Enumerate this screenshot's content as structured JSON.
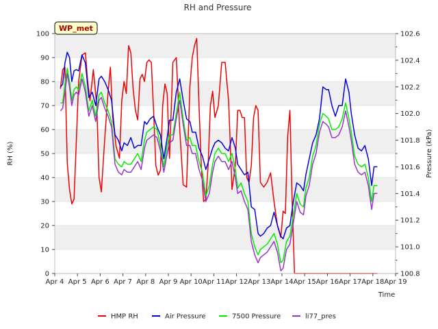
{
  "chart_data": {
    "type": "line",
    "title": "RH and Pressure",
    "xlabel": "Time",
    "ylabel": "RH (%)",
    "y2label": "Pressure (kPa)",
    "badge": "WP_met",
    "xlim": [
      0,
      15
    ],
    "ylim": [
      0,
      100
    ],
    "y2lim": [
      100.8,
      102.6
    ],
    "x_ticks": [
      {
        "v": 0,
        "label": "Apr 4"
      },
      {
        "v": 1,
        "label": "Apr 5"
      },
      {
        "v": 2,
        "label": "Apr 6"
      },
      {
        "v": 3,
        "label": "Apr 7"
      },
      {
        "v": 4,
        "label": "Apr 8"
      },
      {
        "v": 5,
        "label": "Apr 9"
      },
      {
        "v": 6,
        "label": "Apr 10"
      },
      {
        "v": 7,
        "label": "Apr 11"
      },
      {
        "v": 8,
        "label": "Apr 12"
      },
      {
        "v": 9,
        "label": "Apr 13"
      },
      {
        "v": 10,
        "label": "Apr 14"
      },
      {
        "v": 11,
        "label": "Apr 15"
      },
      {
        "v": 12,
        "label": "Apr 16"
      },
      {
        "v": 13,
        "label": "Apr 17"
      },
      {
        "v": 14,
        "label": "Apr 18"
      },
      {
        "v": 15,
        "label": "Apr 19"
      }
    ],
    "y_ticks": [
      {
        "v": 0,
        "label": "0"
      },
      {
        "v": 10,
        "label": "10"
      },
      {
        "v": 20,
        "label": "20"
      },
      {
        "v": 30,
        "label": "30"
      },
      {
        "v": 40,
        "label": "40"
      },
      {
        "v": 50,
        "label": "50"
      },
      {
        "v": 60,
        "label": "60"
      },
      {
        "v": 70,
        "label": "70"
      },
      {
        "v": 80,
        "label": "80"
      },
      {
        "v": 90,
        "label": "90"
      },
      {
        "v": 100,
        "label": "100"
      }
    ],
    "y2_ticks": [
      {
        "v": 100.8,
        "label": "100.8"
      },
      {
        "v": 101.0,
        "label": "101.0"
      },
      {
        "v": 101.2,
        "label": "101.2"
      },
      {
        "v": 101.4,
        "label": "101.4"
      },
      {
        "v": 101.6,
        "label": "101.6"
      },
      {
        "v": 101.8,
        "label": "101.8"
      },
      {
        "v": 102.0,
        "label": "102.0"
      },
      {
        "v": 102.2,
        "label": "102.2"
      },
      {
        "v": 102.4,
        "label": "102.4"
      },
      {
        "v": 102.6,
        "label": "102.6"
      }
    ],
    "grid": "horizontal bands",
    "legend_position": "bottom-center",
    "series": [
      {
        "name": "HMP RH",
        "axis": "left",
        "color": "#ee0000",
        "x": [
          0.25,
          0.35,
          0.45,
          0.55,
          0.65,
          0.75,
          0.85,
          0.95,
          1.05,
          1.2,
          1.35,
          1.45,
          1.55,
          1.7,
          1.85,
          1.95,
          2.05,
          2.2,
          2.35,
          2.45,
          2.55,
          2.7,
          2.85,
          2.95,
          3.05,
          3.15,
          3.25,
          3.35,
          3.45,
          3.55,
          3.65,
          3.75,
          3.85,
          3.95,
          4.05,
          4.15,
          4.25,
          4.35,
          4.45,
          4.55,
          4.65,
          4.75,
          4.85,
          4.95,
          5.05,
          5.2,
          5.35,
          5.5,
          5.65,
          5.8,
          5.95,
          6.05,
          6.15,
          6.25,
          6.35,
          6.45,
          6.55,
          6.65,
          6.75,
          6.85,
          6.95,
          7.05,
          7.2,
          7.35,
          7.5,
          7.65,
          7.8,
          7.95,
          8.05,
          8.15,
          8.25,
          8.35,
          8.45,
          8.55,
          8.65,
          8.75,
          8.85,
          8.95,
          9.05,
          9.2,
          9.35,
          9.5,
          9.65,
          9.8,
          9.95,
          10.05,
          10.15,
          10.25,
          10.35,
          10.45,
          10.55,
          10.7,
          11.0,
          11.5,
          12.0,
          12.5,
          13.0,
          13.5,
          14.0,
          14.2
        ],
        "values": [
          77,
          85,
          86,
          46,
          35,
          29,
          31,
          55,
          80,
          91,
          92,
          80,
          72,
          85,
          70,
          40,
          34,
          56,
          76,
          86,
          65,
          53,
          48,
          72,
          80,
          75,
          95,
          92,
          77,
          68,
          64,
          81,
          83,
          80,
          88,
          89,
          88,
          68,
          45,
          41,
          43,
          70,
          79,
          75,
          48,
          88,
          90,
          60,
          37,
          36,
          78,
          90,
          95,
          98,
          70,
          45,
          30,
          31,
          45,
          70,
          76,
          65,
          70,
          88,
          88,
          72,
          35,
          45,
          68,
          68,
          65,
          65,
          40,
          38,
          45,
          65,
          70,
          68,
          38,
          36,
          38,
          42,
          30,
          20,
          15,
          26,
          25,
          57,
          68,
          30,
          0,
          0,
          0,
          0,
          0,
          0,
          0,
          0,
          0,
          0
        ]
      },
      {
        "name": "Air Pressure",
        "axis": "right",
        "color": "#0000dd",
        "x": [
          0.25,
          0.35,
          0.45,
          0.55,
          0.65,
          0.75,
          0.85,
          0.95,
          1.05,
          1.2,
          1.35,
          1.5,
          1.65,
          1.8,
          1.95,
          2.05,
          2.2,
          2.35,
          2.5,
          2.65,
          2.8,
          2.95,
          3.05,
          3.2,
          3.35,
          3.5,
          3.65,
          3.8,
          3.95,
          4.05,
          4.2,
          4.35,
          4.5,
          4.65,
          4.8,
          4.95,
          5.05,
          5.2,
          5.35,
          5.5,
          5.65,
          5.8,
          5.95,
          6.05,
          6.2,
          6.35,
          6.5,
          6.65,
          6.8,
          6.95,
          7.05,
          7.2,
          7.35,
          7.5,
          7.65,
          7.8,
          7.95,
          8.05,
          8.2,
          8.35,
          8.5,
          8.65,
          8.8,
          8.95,
          9.05,
          9.2,
          9.35,
          9.5,
          9.65,
          9.8,
          9.95,
          10.05,
          10.2,
          10.35,
          10.5,
          10.65,
          10.8,
          10.95,
          11.05,
          11.2,
          11.35,
          11.5,
          11.65,
          11.8,
          11.95,
          12.05,
          12.2,
          12.35,
          12.5,
          12.65,
          12.8,
          12.95,
          13.05,
          13.2,
          13.35,
          13.5,
          13.65,
          13.8,
          13.95,
          14.05,
          14.2
        ],
        "values": [
          102.2,
          102.22,
          102.38,
          102.46,
          102.42,
          102.24,
          102.32,
          102.33,
          102.32,
          102.44,
          102.38,
          102.12,
          102.16,
          102.06,
          102.26,
          102.28,
          102.24,
          102.18,
          102.1,
          101.84,
          101.8,
          101.72,
          101.78,
          101.76,
          101.82,
          101.74,
          101.76,
          101.76,
          101.94,
          101.92,
          101.96,
          101.98,
          101.9,
          101.84,
          101.66,
          101.82,
          101.95,
          101.95,
          102.16,
          102.26,
          102.1,
          101.96,
          101.94,
          101.86,
          101.86,
          101.74,
          101.68,
          101.58,
          101.66,
          101.74,
          101.78,
          101.8,
          101.78,
          101.74,
          101.72,
          101.82,
          101.74,
          101.62,
          101.58,
          101.54,
          101.56,
          101.3,
          101.28,
          101.1,
          101.08,
          101.1,
          101.14,
          101.16,
          101.26,
          101.16,
          101.08,
          101.06,
          101.14,
          101.16,
          101.34,
          101.48,
          101.46,
          101.42,
          101.54,
          101.66,
          101.78,
          101.84,
          101.96,
          102.2,
          102.18,
          102.18,
          102.06,
          101.98,
          102.06,
          102.06,
          102.26,
          102.16,
          102.0,
          101.84,
          101.74,
          101.72,
          101.76,
          101.66,
          101.46,
          101.6,
          101.6
        ]
      },
      {
        "name": "7500 Pressure",
        "axis": "right",
        "color": "#00ee00",
        "x": [
          0.25,
          0.35,
          0.45,
          0.55,
          0.65,
          0.75,
          0.85,
          0.95,
          1.05,
          1.2,
          1.35,
          1.5,
          1.65,
          1.8,
          1.95,
          2.05,
          2.2,
          2.35,
          2.5,
          2.65,
          2.8,
          2.95,
          3.05,
          3.2,
          3.35,
          3.5,
          3.65,
          3.8,
          3.95,
          4.05,
          4.2,
          4.35,
          4.5,
          4.65,
          4.8,
          4.95,
          5.05,
          5.2,
          5.35,
          5.5,
          5.65,
          5.8,
          5.95,
          6.05,
          6.2,
          6.35,
          6.5,
          6.65,
          6.8,
          6.95,
          7.05,
          7.2,
          7.35,
          7.5,
          7.65,
          7.8,
          7.95,
          8.05,
          8.2,
          8.35,
          8.5,
          8.65,
          8.8,
          8.95,
          9.05,
          9.2,
          9.35,
          9.5,
          9.65,
          9.8,
          9.95,
          10.05,
          10.2,
          10.35,
          10.5,
          10.65,
          10.8,
          10.95,
          11.05,
          11.2,
          11.35,
          11.5,
          11.65,
          11.8,
          11.95,
          12.05,
          12.2,
          12.35,
          12.5,
          12.65,
          12.8,
          12.95,
          13.05,
          13.2,
          13.35,
          13.5,
          13.65,
          13.8,
          13.95,
          14.05,
          14.2
        ],
        "values": [
          102.08,
          102.08,
          102.22,
          102.34,
          102.24,
          102.1,
          102.18,
          102.2,
          102.18,
          102.3,
          102.2,
          102.02,
          102.1,
          101.98,
          102.14,
          102.16,
          102.08,
          102.02,
          101.94,
          101.66,
          101.62,
          101.6,
          101.64,
          101.62,
          101.62,
          101.66,
          101.7,
          101.64,
          101.8,
          101.86,
          101.88,
          101.9,
          101.88,
          101.76,
          101.6,
          101.76,
          101.84,
          101.84,
          102.0,
          102.16,
          101.96,
          101.8,
          101.82,
          101.76,
          101.76,
          101.64,
          101.56,
          101.38,
          101.46,
          101.62,
          101.7,
          101.74,
          101.7,
          101.7,
          101.64,
          101.7,
          101.58,
          101.44,
          101.48,
          101.4,
          101.34,
          101.1,
          101.0,
          100.94,
          100.98,
          101.0,
          101.02,
          101.06,
          101.1,
          101.02,
          100.88,
          100.9,
          101.04,
          101.08,
          101.24,
          101.4,
          101.32,
          101.3,
          101.44,
          101.52,
          101.68,
          101.76,
          101.92,
          102.0,
          101.98,
          101.96,
          101.88,
          101.88,
          101.9,
          101.96,
          102.08,
          101.96,
          101.86,
          101.68,
          101.62,
          101.6,
          101.62,
          101.52,
          101.34,
          101.46,
          101.46
        ]
      },
      {
        "name": "li77_pres",
        "axis": "right",
        "color": "#9933cc",
        "x": [
          0.25,
          0.35,
          0.45,
          0.55,
          0.65,
          0.75,
          0.85,
          0.95,
          1.05,
          1.2,
          1.35,
          1.5,
          1.65,
          1.8,
          1.95,
          2.05,
          2.2,
          2.35,
          2.5,
          2.65,
          2.8,
          2.95,
          3.05,
          3.2,
          3.35,
          3.5,
          3.65,
          3.8,
          3.95,
          4.05,
          4.2,
          4.35,
          4.5,
          4.65,
          4.8,
          4.95,
          5.05,
          5.2,
          5.35,
          5.5,
          5.65,
          5.8,
          5.95,
          6.05,
          6.2,
          6.35,
          6.5,
          6.65,
          6.8,
          6.95,
          7.05,
          7.2,
          7.35,
          7.5,
          7.65,
          7.8,
          7.95,
          8.05,
          8.2,
          8.35,
          8.5,
          8.65,
          8.8,
          8.95,
          9.05,
          9.2,
          9.35,
          9.5,
          9.65,
          9.8,
          9.95,
          10.05,
          10.2,
          10.35,
          10.5,
          10.65,
          10.8,
          10.95,
          11.05,
          11.2,
          11.35,
          11.5,
          11.65,
          11.8,
          11.95,
          12.05,
          12.2,
          12.35,
          12.5,
          12.65,
          12.8,
          12.95,
          13.05,
          13.2,
          13.35,
          13.5,
          13.65,
          13.8,
          13.95,
          14.05,
          14.2
        ],
        "values": [
          102.02,
          102.04,
          102.16,
          102.3,
          102.2,
          102.06,
          102.14,
          102.16,
          102.14,
          102.26,
          102.16,
          101.98,
          102.06,
          101.94,
          102.1,
          102.12,
          102.04,
          101.98,
          101.9,
          101.62,
          101.56,
          101.54,
          101.58,
          101.56,
          101.56,
          101.6,
          101.64,
          101.58,
          101.74,
          101.8,
          101.82,
          101.84,
          101.82,
          101.72,
          101.56,
          101.7,
          101.78,
          101.8,
          101.96,
          102.1,
          101.92,
          101.76,
          101.76,
          101.7,
          101.7,
          101.58,
          101.5,
          101.34,
          101.4,
          101.56,
          101.64,
          101.68,
          101.64,
          101.64,
          101.58,
          101.64,
          101.52,
          101.4,
          101.42,
          101.34,
          101.28,
          101.04,
          100.94,
          100.88,
          100.92,
          100.94,
          100.96,
          101.0,
          101.04,
          100.96,
          100.82,
          100.84,
          100.98,
          101.02,
          101.18,
          101.34,
          101.26,
          101.24,
          101.38,
          101.46,
          101.62,
          101.7,
          101.86,
          101.94,
          101.92,
          101.9,
          101.82,
          101.82,
          101.84,
          101.9,
          102.02,
          101.9,
          101.8,
          101.62,
          101.56,
          101.54,
          101.56,
          101.46,
          101.28,
          101.4,
          101.4
        ]
      }
    ]
  }
}
